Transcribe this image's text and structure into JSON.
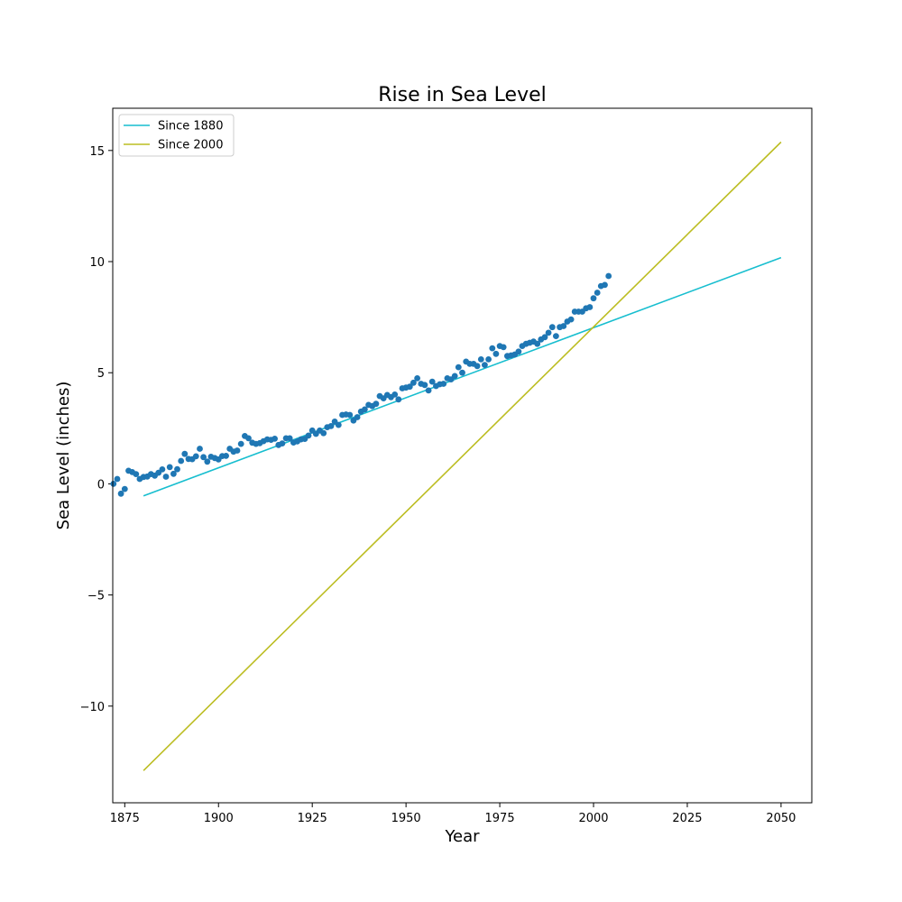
{
  "chart_data": {
    "type": "scatter",
    "title": "Rise in Sea Level",
    "xlabel": "Year",
    "ylabel": "Sea Level (inches)",
    "xlim": [
      1871.8,
      2058.2
    ],
    "ylim": [
      -14.35,
      16.9
    ],
    "xticks": [
      1875,
      1900,
      1925,
      1950,
      1975,
      2000,
      2025,
      2050
    ],
    "yticks": [
      -10,
      -5,
      0,
      5,
      10,
      15
    ],
    "grid": false,
    "legend_position": "top-left",
    "scatter": {
      "name": "",
      "color": "#1f77b4",
      "points": [
        [
          1872,
          0.0
        ],
        [
          1873,
          0.22
        ],
        [
          1874,
          -0.44
        ],
        [
          1875,
          -0.23
        ],
        [
          1876,
          0.59
        ],
        [
          1877,
          0.53
        ],
        [
          1878,
          0.44
        ],
        [
          1879,
          0.22
        ],
        [
          1880,
          0.31
        ],
        [
          1881,
          0.33
        ],
        [
          1882,
          0.44
        ],
        [
          1883,
          0.37
        ],
        [
          1884,
          0.5
        ],
        [
          1885,
          0.65
        ],
        [
          1886,
          0.32
        ],
        [
          1887,
          0.75
        ],
        [
          1888,
          0.45
        ],
        [
          1889,
          0.66
        ],
        [
          1890,
          1.03
        ],
        [
          1891,
          1.35
        ],
        [
          1892,
          1.12
        ],
        [
          1893,
          1.11
        ],
        [
          1894,
          1.24
        ],
        [
          1895,
          1.58
        ],
        [
          1896,
          1.2
        ],
        [
          1897,
          1.0
        ],
        [
          1898,
          1.22
        ],
        [
          1899,
          1.16
        ],
        [
          1900,
          1.1
        ],
        [
          1901,
          1.25
        ],
        [
          1902,
          1.26
        ],
        [
          1903,
          1.58
        ],
        [
          1904,
          1.45
        ],
        [
          1905,
          1.5
        ],
        [
          1906,
          1.8
        ],
        [
          1907,
          2.15
        ],
        [
          1908,
          2.05
        ],
        [
          1909,
          1.85
        ],
        [
          1910,
          1.8
        ],
        [
          1911,
          1.83
        ],
        [
          1912,
          1.92
        ],
        [
          1913,
          2.0
        ],
        [
          1914,
          1.98
        ],
        [
          1915,
          2.03
        ],
        [
          1916,
          1.75
        ],
        [
          1917,
          1.82
        ],
        [
          1918,
          2.05
        ],
        [
          1919,
          2.05
        ],
        [
          1920,
          1.86
        ],
        [
          1921,
          1.91
        ],
        [
          1922,
          2.0
        ],
        [
          1923,
          2.02
        ],
        [
          1924,
          2.17
        ],
        [
          1925,
          2.4
        ],
        [
          1926,
          2.25
        ],
        [
          1927,
          2.4
        ],
        [
          1928,
          2.28
        ],
        [
          1929,
          2.55
        ],
        [
          1930,
          2.6
        ],
        [
          1931,
          2.8
        ],
        [
          1932,
          2.65
        ],
        [
          1933,
          3.1
        ],
        [
          1934,
          3.12
        ],
        [
          1935,
          3.1
        ],
        [
          1936,
          2.85
        ],
        [
          1937,
          3.0
        ],
        [
          1938,
          3.25
        ],
        [
          1939,
          3.35
        ],
        [
          1940,
          3.55
        ],
        [
          1941,
          3.5
        ],
        [
          1942,
          3.6
        ],
        [
          1943,
          3.95
        ],
        [
          1944,
          3.85
        ],
        [
          1945,
          4.0
        ],
        [
          1946,
          3.9
        ],
        [
          1947,
          4.02
        ],
        [
          1948,
          3.8
        ],
        [
          1949,
          4.3
        ],
        [
          1950,
          4.33
        ],
        [
          1951,
          4.37
        ],
        [
          1952,
          4.55
        ],
        [
          1953,
          4.75
        ],
        [
          1954,
          4.5
        ],
        [
          1955,
          4.45
        ],
        [
          1956,
          4.2
        ],
        [
          1957,
          4.6
        ],
        [
          1958,
          4.4
        ],
        [
          1959,
          4.48
        ],
        [
          1960,
          4.5
        ],
        [
          1961,
          4.75
        ],
        [
          1962,
          4.7
        ],
        [
          1963,
          4.85
        ],
        [
          1964,
          5.25
        ],
        [
          1965,
          5.0
        ],
        [
          1966,
          5.5
        ],
        [
          1967,
          5.4
        ],
        [
          1968,
          5.4
        ],
        [
          1969,
          5.3
        ],
        [
          1970,
          5.6
        ],
        [
          1971,
          5.35
        ],
        [
          1972,
          5.6
        ],
        [
          1973,
          6.1
        ],
        [
          1974,
          5.85
        ],
        [
          1975,
          6.2
        ],
        [
          1976,
          6.15
        ],
        [
          1977,
          5.75
        ],
        [
          1978,
          5.78
        ],
        [
          1979,
          5.82
        ],
        [
          1980,
          5.95
        ],
        [
          1981,
          6.2
        ],
        [
          1982,
          6.3
        ],
        [
          1983,
          6.35
        ],
        [
          1984,
          6.4
        ],
        [
          1985,
          6.3
        ],
        [
          1986,
          6.5
        ],
        [
          1987,
          6.6
        ],
        [
          1988,
          6.8
        ],
        [
          1989,
          7.05
        ],
        [
          1990,
          6.65
        ],
        [
          1991,
          7.05
        ],
        [
          1992,
          7.1
        ],
        [
          1993,
          7.3
        ],
        [
          1994,
          7.4
        ],
        [
          1995,
          7.75
        ],
        [
          1996,
          7.75
        ],
        [
          1997,
          7.75
        ],
        [
          1998,
          7.9
        ],
        [
          1999,
          7.95
        ],
        [
          2000,
          8.35
        ],
        [
          2001,
          8.6
        ],
        [
          2002,
          8.9
        ],
        [
          2003,
          8.95
        ],
        [
          2004,
          9.35
        ]
      ]
    },
    "series": [
      {
        "name": "Since 1880",
        "color": "#17becf",
        "x": [
          1880,
          2050
        ],
        "y": [
          -0.54,
          10.18
        ]
      },
      {
        "name": "Since 2000",
        "color": "#bcbd22",
        "x": [
          1880,
          2050
        ],
        "y": [
          -12.9,
          15.38
        ]
      }
    ]
  }
}
